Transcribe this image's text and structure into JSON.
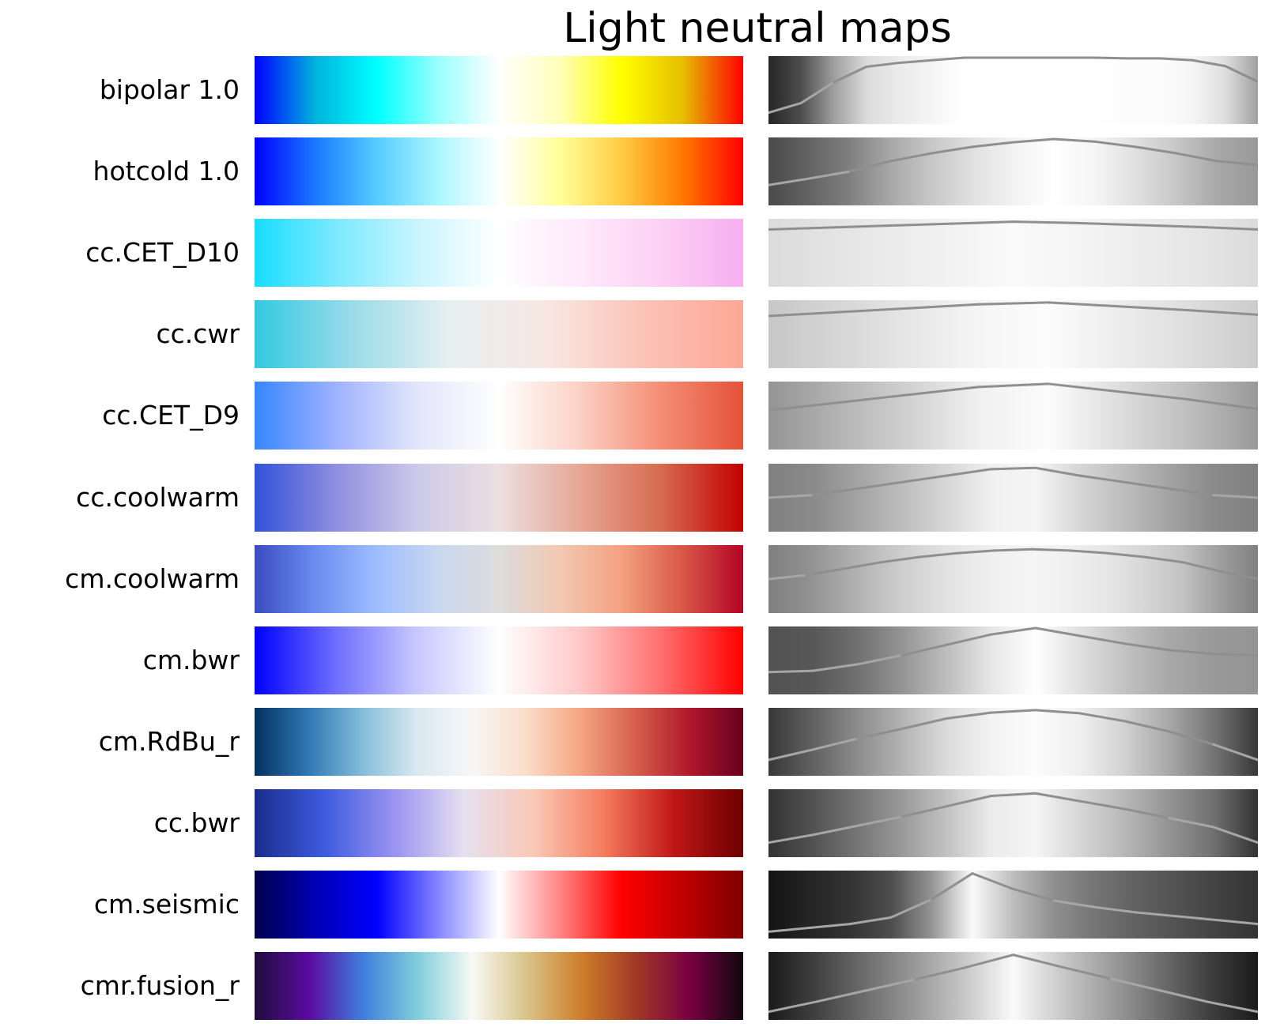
{
  "chart_data": {
    "type": "heatmap",
    "title": "Light neutral maps",
    "colormaps": [
      {
        "name": "bipolar 1.0",
        "stops": [
          "#0000ff",
          "#00b4dd",
          "#00ffff",
          "#99ffff",
          "#ffffff",
          "#ffffbb",
          "#ffff00",
          "#e6c000",
          "#ff0000"
        ],
        "lightness": [
          0.15,
          0.3,
          0.62,
          0.86,
          0.92,
          0.96,
          1.0,
          1.0,
          1.0,
          1.0,
          1.0,
          0.99,
          0.99,
          0.96,
          0.87,
          0.63
        ]
      },
      {
        "name": "hotcold 1.0",
        "stops": [
          "#0000ff",
          "#1a7aff",
          "#55ccff",
          "#aaf6ff",
          "#ffffff",
          "#ffff99",
          "#ffcc44",
          "#ff7a00",
          "#ff0000"
        ],
        "lightness": [
          0.29,
          0.39,
          0.5,
          0.66,
          0.78,
          0.88,
          0.95,
          1.0,
          0.96,
          0.88,
          0.78,
          0.66,
          0.6
        ]
      },
      {
        "name": "cc.CET_D10",
        "stops": [
          "#18ddff",
          "#7ce9ff",
          "#c9f5ff",
          "#ffffff",
          "#ffe9fb",
          "#fcd0f4",
          "#f6aef0"
        ],
        "lightness": [
          0.86,
          0.89,
          0.92,
          0.95,
          0.98,
          0.96,
          0.93,
          0.9,
          0.86
        ]
      },
      {
        "name": "cc.cwr",
        "stops": [
          "#33c9e1",
          "#9adbe9",
          "#e6f0f1",
          "#f9e7e2",
          "#fbc2b6",
          "#fda796"
        ],
        "lightness": [
          0.78,
          0.84,
          0.9,
          0.96,
          0.99,
          0.93,
          0.87,
          0.8
        ]
      },
      {
        "name": "cc.CET_D9",
        "stops": [
          "#3686ff",
          "#9fb2ff",
          "#e3e6fb",
          "#ffffff",
          "#fbd0c4",
          "#f48c74",
          "#e45239"
        ],
        "lightness": [
          0.58,
          0.7,
          0.82,
          0.94,
          0.99,
          0.87,
          0.75,
          0.6
        ]
      },
      {
        "name": "cc.coolwarm",
        "stops": [
          "#3152d8",
          "#8f8ee0",
          "#cdc9ea",
          "#ecdfe0",
          "#e6a694",
          "#d66a4e",
          "#c20000"
        ],
        "lightness": [
          0.5,
          0.54,
          0.64,
          0.74,
          0.84,
          0.94,
          0.96,
          0.84,
          0.74,
          0.64,
          0.54,
          0.5
        ]
      },
      {
        "name": "cm.coolwarm",
        "stops": [
          "#3b4cc0",
          "#6b8df0",
          "#9ebdff",
          "#c9d8f0",
          "#dddcdc",
          "#f2c8b2",
          "#f4a180",
          "#d95847",
          "#b40426"
        ],
        "lightness": [
          0.5,
          0.56,
          0.66,
          0.76,
          0.84,
          0.9,
          0.94,
          0.96,
          0.94,
          0.9,
          0.84,
          0.76,
          0.62,
          0.5
        ]
      },
      {
        "name": "cm.bwr",
        "stops": [
          "#0000ff",
          "#6e6eff",
          "#c8c8ff",
          "#ffffff",
          "#ffc8c8",
          "#ff6e6e",
          "#ff0000"
        ],
        "lightness": [
          0.32,
          0.34,
          0.44,
          0.58,
          0.74,
          0.9,
          1.0,
          0.88,
          0.76,
          0.66,
          0.6,
          0.58
        ]
      },
      {
        "name": "cm.RdBu_r",
        "stops": [
          "#053061",
          "#2f79b5",
          "#87beda",
          "#d9e9f1",
          "#f7f7f7",
          "#fbddc9",
          "#f4a582",
          "#d6604d",
          "#b2182b",
          "#67001f"
        ],
        "lightness": [
          0.22,
          0.38,
          0.55,
          0.7,
          0.86,
          0.95,
          0.99,
          0.94,
          0.82,
          0.66,
          0.46,
          0.22
        ]
      },
      {
        "name": "cc.bwr",
        "stops": [
          "#1a2c8c",
          "#3d5bde",
          "#9a93f1",
          "#e6e0f0",
          "#fac8b6",
          "#f57c5e",
          "#c01717",
          "#6e0000"
        ],
        "lightness": [
          0.2,
          0.32,
          0.46,
          0.6,
          0.76,
          0.92,
          0.96,
          0.84,
          0.72,
          0.58,
          0.44,
          0.2
        ]
      },
      {
        "name": "cm.seismic",
        "stops": [
          "#00004c",
          "#0000b4",
          "#0000ff",
          "#8585ff",
          "#ffffff",
          "#ff8585",
          "#ff0000",
          "#c00000",
          "#800000"
        ],
        "lightness": [
          0.08,
          0.14,
          0.2,
          0.3,
          0.58,
          0.98,
          0.74,
          0.56,
          0.46,
          0.38,
          0.32,
          0.26,
          0.2
        ]
      },
      {
        "name": "cmr.fusion_r",
        "stops": [
          "#200d3b",
          "#5a0aa0",
          "#3f7fdc",
          "#7fcedb",
          "#f7f9f4",
          "#d9c48a",
          "#cf7f2c",
          "#a33a24",
          "#7a0042",
          "#11080e"
        ],
        "lightness": [
          0.1,
          0.26,
          0.43,
          0.6,
          0.78,
          0.98,
          0.79,
          0.61,
          0.43,
          0.25,
          0.1
        ]
      }
    ]
  }
}
